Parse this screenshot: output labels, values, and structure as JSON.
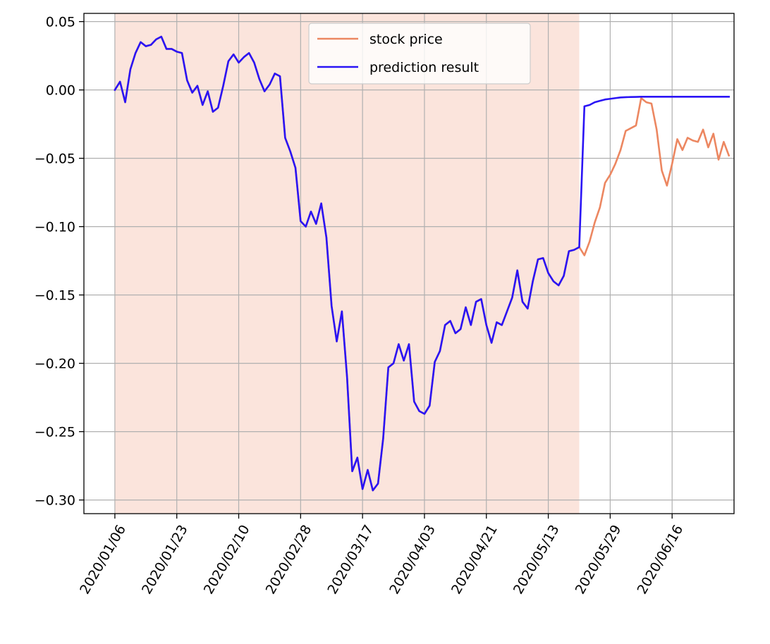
{
  "chart_data": {
    "type": "line",
    "title": "",
    "xlabel": "",
    "ylabel": "",
    "ylim": [
      -0.31,
      0.056
    ],
    "grid": true,
    "legend_position": "top-center",
    "y_ticks": [
      0.05,
      0.0,
      -0.05,
      -0.1,
      -0.15,
      -0.2,
      -0.25,
      -0.3
    ],
    "y_tick_labels": [
      "0.05",
      "0.00",
      "−0.05",
      "−0.10",
      "−0.15",
      "−0.20",
      "−0.25",
      "−0.30"
    ],
    "x_tick_indices": [
      0,
      12,
      24,
      36,
      48,
      60,
      72,
      84,
      96,
      108
    ],
    "x_tick_labels": [
      "2020/01/06",
      "2020/01/23",
      "2020/02/10",
      "2020/02/28",
      "2020/03/17",
      "2020/04/03",
      "2020/04/21",
      "2020/05/13",
      "2020/05/29",
      "2020/06/16"
    ],
    "x_range_index": [
      -6,
      120
    ],
    "shaded_region": {
      "from_index": 0,
      "to_index": 90,
      "color": "#fbe4dc"
    },
    "series": [
      {
        "name": "stock price",
        "color": "#ec8761",
        "start_index": 0,
        "values": [
          0.0,
          0.006,
          -0.009,
          0.015,
          0.027,
          0.035,
          0.032,
          0.033,
          0.037,
          0.039,
          0.03,
          0.03,
          0.028,
          0.027,
          0.007,
          -0.002,
          0.003,
          -0.011,
          -0.001,
          -0.016,
          -0.013,
          0.003,
          0.021,
          0.026,
          0.02,
          0.024,
          0.027,
          0.02,
          0.008,
          -0.001,
          0.004,
          0.012,
          0.01,
          -0.035,
          -0.045,
          -0.057,
          -0.096,
          -0.1,
          -0.089,
          -0.098,
          -0.083,
          -0.108,
          -0.158,
          -0.184,
          -0.162,
          -0.21,
          -0.279,
          -0.269,
          -0.292,
          -0.278,
          -0.293,
          -0.288,
          -0.255,
          -0.203,
          -0.2,
          -0.186,
          -0.198,
          -0.186,
          -0.228,
          -0.235,
          -0.237,
          -0.231,
          -0.199,
          -0.191,
          -0.172,
          -0.169,
          -0.178,
          -0.175,
          -0.159,
          -0.172,
          -0.155,
          -0.153,
          -0.172,
          -0.185,
          -0.17,
          -0.172,
          -0.162,
          -0.152,
          -0.132,
          -0.155,
          -0.16,
          -0.14,
          -0.124,
          -0.123,
          -0.134,
          -0.14,
          -0.143,
          -0.136,
          -0.118,
          -0.117,
          -0.115,
          -0.121,
          -0.111,
          -0.097,
          -0.086,
          -0.068,
          -0.062,
          -0.054,
          -0.044,
          -0.03,
          -0.028,
          -0.026,
          -0.006,
          -0.009,
          -0.01,
          -0.029,
          -0.059,
          -0.07,
          -0.054,
          -0.036,
          -0.044,
          -0.035,
          -0.037,
          -0.038,
          -0.029,
          -0.042,
          -0.032,
          -0.051,
          -0.038,
          -0.048
        ]
      },
      {
        "name": "prediction result",
        "color": "#2a14f5",
        "start_index": 0,
        "values": [
          0.0,
          0.006,
          -0.009,
          0.015,
          0.027,
          0.035,
          0.032,
          0.033,
          0.037,
          0.039,
          0.03,
          0.03,
          0.028,
          0.027,
          0.007,
          -0.002,
          0.003,
          -0.011,
          -0.001,
          -0.016,
          -0.013,
          0.003,
          0.021,
          0.026,
          0.02,
          0.024,
          0.027,
          0.02,
          0.008,
          -0.001,
          0.004,
          0.012,
          0.01,
          -0.035,
          -0.045,
          -0.057,
          -0.096,
          -0.1,
          -0.089,
          -0.098,
          -0.083,
          -0.108,
          -0.158,
          -0.184,
          -0.162,
          -0.21,
          -0.279,
          -0.269,
          -0.292,
          -0.278,
          -0.293,
          -0.288,
          -0.255,
          -0.203,
          -0.2,
          -0.186,
          -0.198,
          -0.186,
          -0.228,
          -0.235,
          -0.237,
          -0.231,
          -0.199,
          -0.191,
          -0.172,
          -0.169,
          -0.178,
          -0.175,
          -0.159,
          -0.172,
          -0.155,
          -0.153,
          -0.172,
          -0.185,
          -0.17,
          -0.172,
          -0.162,
          -0.152,
          -0.132,
          -0.155,
          -0.16,
          -0.14,
          -0.124,
          -0.123,
          -0.134,
          -0.14,
          -0.143,
          -0.136,
          -0.118,
          -0.117,
          -0.115,
          -0.012,
          -0.011,
          -0.009,
          -0.008,
          -0.007,
          -0.0065,
          -0.006,
          -0.0055,
          -0.0053,
          -0.0052,
          -0.0051,
          -0.005,
          -0.005,
          -0.005,
          -0.005,
          -0.005,
          -0.005,
          -0.005,
          -0.005,
          -0.005,
          -0.005,
          -0.005,
          -0.005,
          -0.005,
          -0.005,
          -0.005,
          -0.005,
          -0.005,
          -0.005
        ]
      }
    ]
  }
}
